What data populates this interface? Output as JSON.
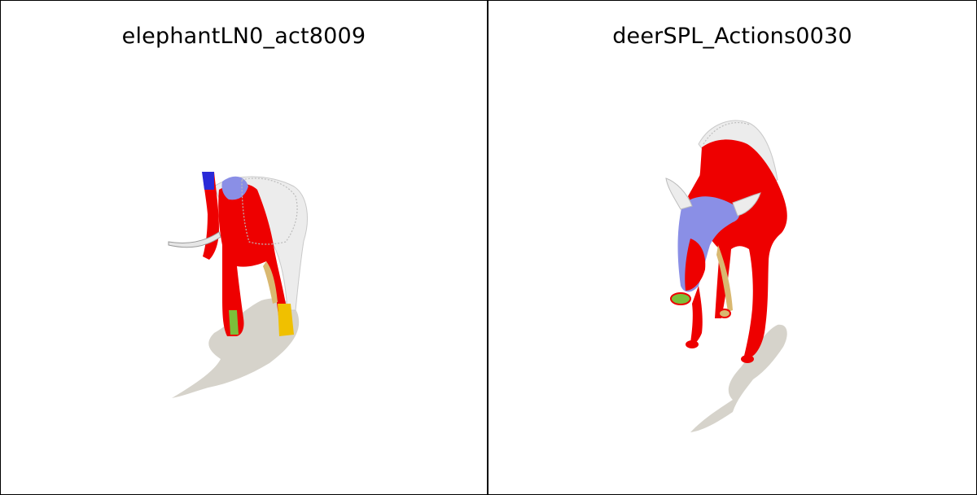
{
  "panels": [
    {
      "title": "elephantLN0_act8009",
      "subject": "elephant-mesh"
    },
    {
      "title": "deerSPL_Actions0030",
      "subject": "deer-mesh"
    }
  ],
  "colors": {
    "shadow": "#d6d3cb",
    "mesh_red": "#ee0000",
    "mesh_blue": "#8a8fe6",
    "mesh_deep_blue": "#2a2ad8",
    "mesh_yellow": "#f0c000",
    "mesh_green": "#7bbf3a",
    "mesh_tan": "#d9b870",
    "wireframe": "#e8e8e8",
    "border": "#000000"
  }
}
